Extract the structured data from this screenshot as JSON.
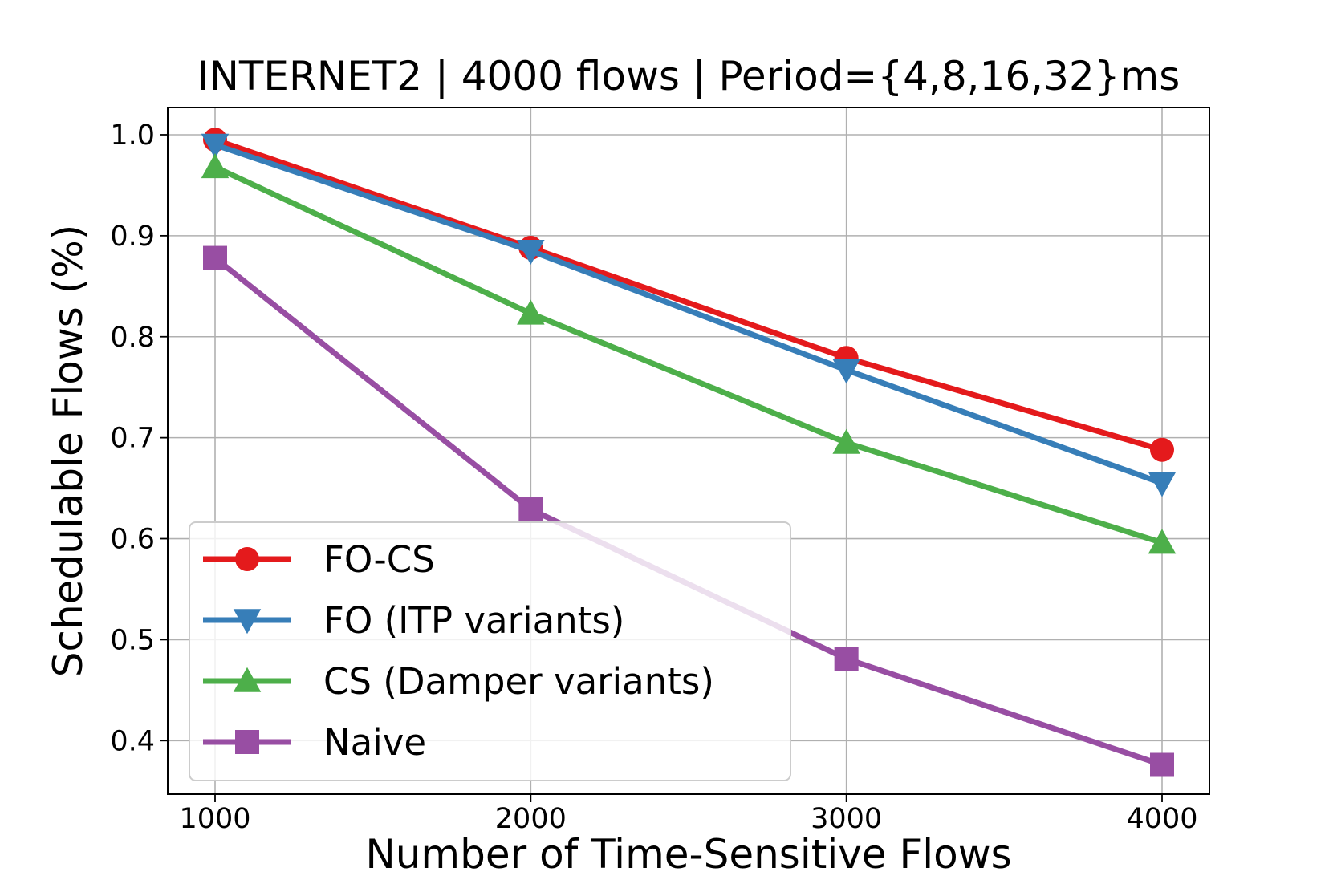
{
  "chart_data": {
    "type": "line",
    "title": "INTERNET2 | 4000 flows | Period={4,8,16,32}ms",
    "xlabel": "Number of Time-Sensitive Flows",
    "ylabel": "Schedulable Flows (%)",
    "x": [
      1000,
      2000,
      3000,
      4000
    ],
    "x_ticks": [
      "1000",
      "2000",
      "3000",
      "4000"
    ],
    "y_ticks": [
      "0.4",
      "0.5",
      "0.6",
      "0.7",
      "0.8",
      "0.9",
      "1.0"
    ],
    "xlim": [
      850,
      4150
    ],
    "ylim": [
      0.347,
      1.027
    ],
    "grid": true,
    "legend_position": "lower-left",
    "series": [
      {
        "name": "FO-CS",
        "color": "#e41a1c",
        "marker": "circle",
        "values": [
          0.995,
          0.888,
          0.779,
          0.688
        ]
      },
      {
        "name": "FO (ITP variants)",
        "color": "#377eb8",
        "marker": "triangle-down",
        "values": [
          0.99,
          0.885,
          0.767,
          0.655
        ]
      },
      {
        "name": "CS (Damper variants)",
        "color": "#4daf4a",
        "marker": "triangle-up",
        "values": [
          0.968,
          0.823,
          0.695,
          0.596
        ]
      },
      {
        "name": "Naive",
        "color": "#984ea3",
        "marker": "square",
        "values": [
          0.878,
          0.629,
          0.481,
          0.376
        ]
      }
    ]
  }
}
